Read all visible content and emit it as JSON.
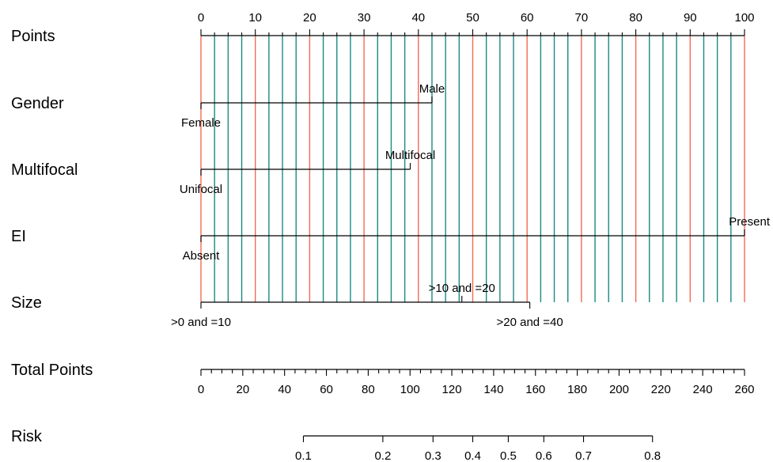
{
  "chart_data": {
    "type": "nomogram",
    "colors": {
      "gridline_major": "#F26B55",
      "gridline_minor": "#1B8A82",
      "axis": "#000000"
    },
    "points_axis": {
      "label": "Points",
      "range": [
        0,
        100
      ],
      "major_ticks": [
        0,
        10,
        20,
        30,
        40,
        50,
        60,
        70,
        80,
        90,
        100
      ],
      "minor_step": 2.5
    },
    "variables": [
      {
        "name": "Gender",
        "levels": [
          {
            "label": "Female",
            "points": 0
          },
          {
            "label": "Male",
            "points": 42.5
          }
        ]
      },
      {
        "name": "Multifocal",
        "levels": [
          {
            "label": "Unifocal",
            "points": 0
          },
          {
            "label": "Multifocal",
            "points": 38.5
          }
        ]
      },
      {
        "name": "EI",
        "levels": [
          {
            "label": "Absent",
            "points": 0
          },
          {
            "label": "Present",
            "points": 100
          }
        ]
      },
      {
        "name": "Size",
        "levels": [
          {
            "label": ">0 and =10",
            "points": 0
          },
          {
            "label": ">10 and =20",
            "points": 48
          },
          {
            "label": ">20 and =40",
            "points": 60.5
          }
        ]
      }
    ],
    "total_points_axis": {
      "label": "Total Points",
      "range": [
        0,
        260
      ],
      "major_ticks": [
        0,
        20,
        40,
        60,
        80,
        100,
        120,
        140,
        160,
        180,
        200,
        220,
        240,
        260
      ],
      "minor_step": 5
    },
    "risk_axis": {
      "label": "Risk",
      "ticks": [
        {
          "label": "0.1",
          "total_points": 49
        },
        {
          "label": "0.2",
          "total_points": 87
        },
        {
          "label": "0.3",
          "total_points": 111
        },
        {
          "label": "0.4",
          "total_points": 130
        },
        {
          "label": "0.5",
          "total_points": 147
        },
        {
          "label": "0.6",
          "total_points": 164
        },
        {
          "label": "0.7",
          "total_points": 183
        },
        {
          "label": "0.8",
          "total_points": 216
        }
      ]
    }
  }
}
